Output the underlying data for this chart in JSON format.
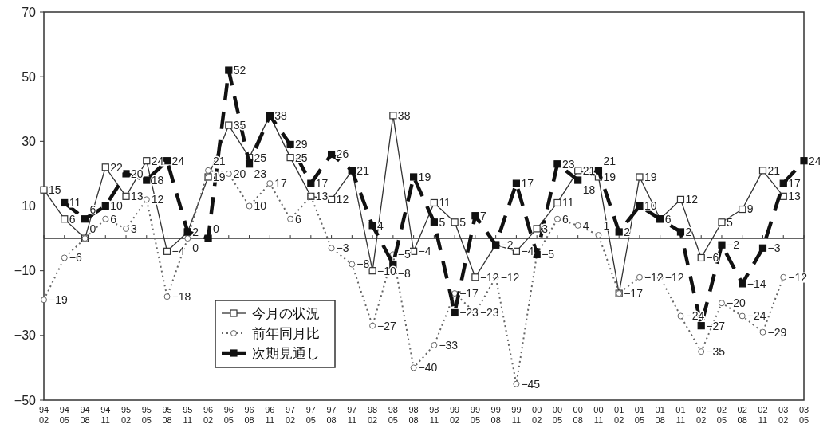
{
  "chart_data": {
    "type": "line",
    "categories": [
      "94\n02",
      "94\n05",
      "94\n08",
      "94\n11",
      "95\n02",
      "95\n05",
      "95\n08",
      "95\n11",
      "96\n02",
      "96\n05",
      "96\n08",
      "96\n11",
      "97\n02",
      "97\n05",
      "97\n08",
      "97\n11",
      "98\n02",
      "98\n05",
      "98\n08",
      "98\n11",
      "99\n02",
      "99\n05",
      "99\n08",
      "99\n11",
      "00\n02",
      "00\n05",
      "00\n08",
      "00\n11",
      "01\n02",
      "01\n05",
      "01\n08",
      "01\n11",
      "02\n02",
      "02\n05",
      "02\n08",
      "02\n11",
      "03\n02",
      "03\n05"
    ],
    "series": [
      {
        "name": "今月の状況",
        "color": "#333333",
        "marker": "square",
        "line_style": "solid",
        "values": [
          15,
          6,
          0,
          22,
          13,
          24,
          -4,
          2,
          19,
          35,
          25,
          38,
          25,
          13,
          12,
          21,
          -10,
          38,
          -4,
          11,
          5,
          -12,
          -2,
          -4,
          3,
          11,
          21,
          19,
          -17,
          19,
          6,
          12,
          -6,
          5,
          9,
          21,
          13,
          null
        ],
        "value_labels": [
          "15",
          "6",
          "0",
          "22",
          "13",
          "24",
          "−4",
          "2",
          "19",
          "35",
          "25",
          "38",
          "25",
          "13",
          "12",
          "21",
          "−10",
          "38",
          "−4",
          "11",
          "5",
          "−12",
          "−2",
          "−4",
          "3",
          "11",
          "21",
          "19",
          "−17",
          "19",
          "6",
          "12",
          "−6",
          "5",
          "9",
          "21",
          "13",
          null
        ]
      },
      {
        "name": "前年同月比",
        "color": "#666666",
        "marker": "circle",
        "line_style": "dotted",
        "values": [
          -19,
          -6,
          0,
          6,
          3,
          12,
          -18,
          0,
          21,
          20,
          10,
          17,
          6,
          13,
          -3,
          -8,
          -27,
          -5,
          -40,
          -33,
          -17,
          -23,
          -12,
          -45,
          -5,
          6,
          4,
          1,
          -17,
          -12,
          -12,
          -24,
          -35,
          -20,
          -24,
          -29,
          -12,
          null
        ],
        "value_labels": [
          "−19",
          "−6",
          null,
          "6",
          "3",
          "12",
          "−18",
          "0",
          "21",
          "20",
          "10",
          "17",
          "6",
          null,
          "−3",
          "−8",
          "−27",
          "−5",
          "−40",
          "−33",
          "−17",
          "−23",
          "−12",
          "−45",
          null,
          "6",
          "4",
          "1",
          null,
          "−12",
          "−12",
          "−24",
          "−35",
          "−20",
          "−24",
          "−29",
          "−12",
          null
        ]
      },
      {
        "name": "次期見通し",
        "color": "#111111",
        "marker": "square",
        "line_style": "dashed",
        "values": [
          null,
          11,
          6,
          10,
          20,
          18,
          24,
          2,
          0,
          52,
          23,
          38,
          29,
          17,
          26,
          21,
          4,
          -8,
          19,
          5,
          -23,
          7,
          -2,
          17,
          -5,
          23,
          18,
          21,
          2,
          10,
          6,
          2,
          -27,
          -2,
          -14,
          -3,
          17,
          24
        ],
        "value_labels": [
          null,
          "11",
          "6",
          "10",
          "20",
          "18",
          "24",
          null,
          "0",
          "52",
          "23",
          null,
          "29",
          "17",
          "26",
          null,
          "4",
          "−8",
          "19",
          "5",
          "−23",
          "7",
          null,
          "17",
          "−5",
          "23",
          "18",
          "21",
          "2",
          "10",
          null,
          "2",
          "−27",
          "−2",
          "−14",
          "−3",
          "17",
          "24"
        ]
      }
    ],
    "ylim": [
      -50,
      70
    ],
    "yticks": [
      -50,
      -30,
      -10,
      10,
      30,
      50,
      70
    ],
    "ref_lines": [
      {
        "axis": "y",
        "value": 0
      }
    ],
    "grid": false,
    "legend": "bottom left"
  }
}
